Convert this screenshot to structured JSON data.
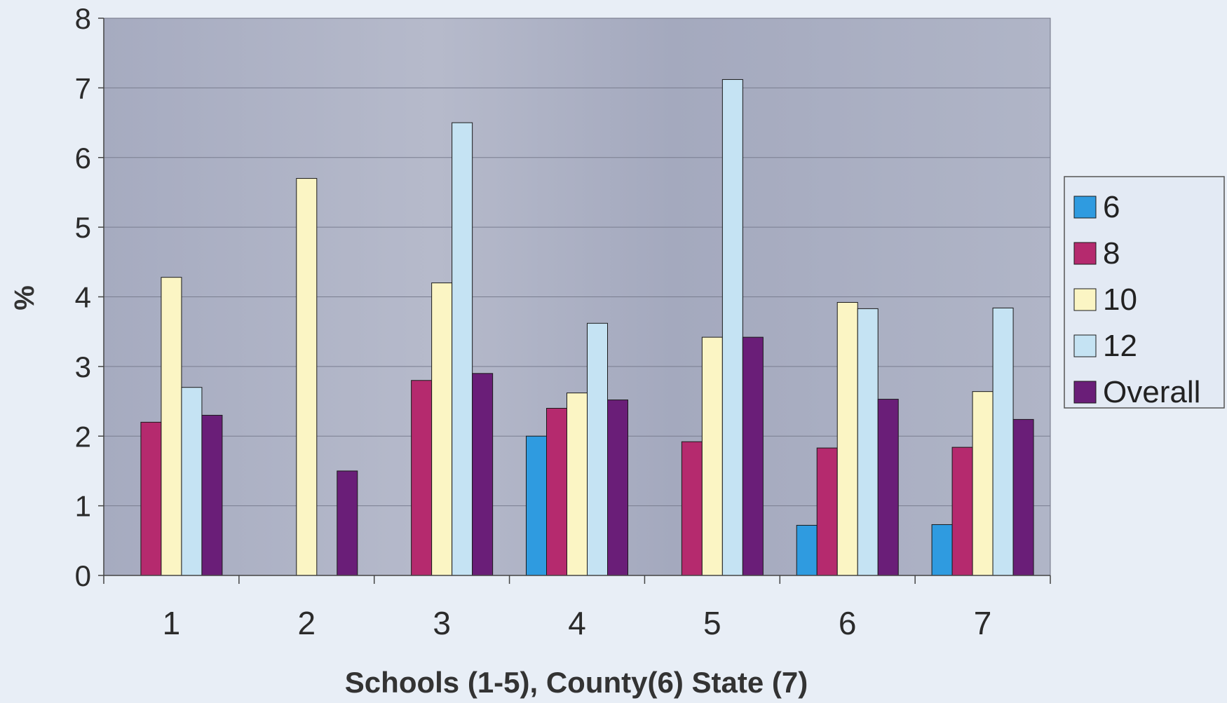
{
  "chart_data": {
    "type": "bar",
    "title": "",
    "xlabel": "Schools (1-5), County(6) State (7)",
    "ylabel": "%",
    "ylim": [
      0,
      8
    ],
    "yticks": [
      "0",
      "1",
      "2",
      "3",
      "4",
      "5",
      "6",
      "7",
      "8"
    ],
    "categories": [
      "1",
      "2",
      "3",
      "4",
      "5",
      "6",
      "7"
    ],
    "grid": true,
    "legend_position": "right",
    "series": [
      {
        "name": "6",
        "color": "#2f9be0",
        "values": [
          0,
          0,
          0,
          2.0,
          0,
          0.72,
          0.73
        ]
      },
      {
        "name": "8",
        "color": "#b52a6e",
        "values": [
          2.2,
          0,
          2.8,
          2.4,
          1.92,
          1.83,
          1.84
        ]
      },
      {
        "name": "10",
        "color": "#fbf5c4",
        "values": [
          4.28,
          5.7,
          4.2,
          2.62,
          3.42,
          3.92,
          2.64
        ]
      },
      {
        "name": "12",
        "color": "#c5e3f3",
        "values": [
          2.7,
          0,
          6.5,
          3.62,
          7.12,
          3.83,
          3.84
        ]
      },
      {
        "name": "Overall",
        "color": "#6a1e78",
        "values": [
          2.3,
          1.5,
          2.9,
          2.52,
          3.42,
          2.53,
          2.24
        ]
      }
    ]
  },
  "colors": {
    "plot_background": "#a9aec3",
    "page_background": "#e8eef6",
    "gridline": "#7a7e90"
  }
}
